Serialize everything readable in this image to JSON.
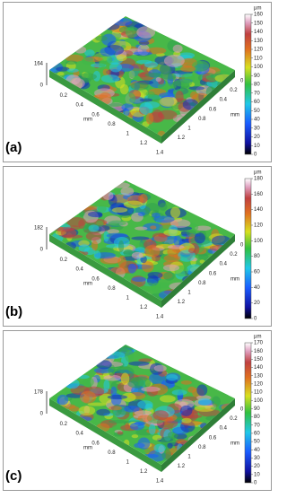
{
  "panels": [
    {
      "label": "(a)",
      "unit": "µm",
      "colorbar_ticks": [
        "0",
        "10",
        "20",
        "30",
        "40",
        "50",
        "60",
        "70",
        "80",
        "90",
        "100",
        "110",
        "120",
        "130",
        "140",
        "150",
        "160"
      ],
      "z_top": "164",
      "z_bottom": "0",
      "x_ticks": [
        "0.2",
        "0.4",
        "0.6",
        "0.8",
        "1",
        "1.2",
        "1.4"
      ],
      "x_unit": "mm",
      "y_ticks": [
        "0",
        "0.2",
        "0.4",
        "0.6",
        "0.8",
        "1",
        "1.2"
      ],
      "y_unit": "mm"
    },
    {
      "label": "(b)",
      "unit": "µm",
      "colorbar_ticks": [
        "0",
        "20",
        "40",
        "60",
        "80",
        "100",
        "120",
        "140",
        "160",
        "180"
      ],
      "z_top": "182",
      "z_bottom": "0",
      "x_ticks": [
        "0.2",
        "0.4",
        "0.6",
        "0.8",
        "1",
        "1.2",
        "1.4"
      ],
      "x_unit": "mm",
      "y_ticks": [
        "0",
        "0.2",
        "0.4",
        "0.6",
        "0.8",
        "1",
        "1.2"
      ],
      "y_unit": "mm"
    },
    {
      "label": "(c)",
      "unit": "µm",
      "colorbar_ticks": [
        "0",
        "10",
        "20",
        "30",
        "40",
        "50",
        "60",
        "70",
        "80",
        "90",
        "100",
        "110",
        "120",
        "130",
        "140",
        "150",
        "160",
        "170"
      ],
      "z_top": "178",
      "z_bottom": "0",
      "x_ticks": [
        "0.2",
        "0.4",
        "0.6",
        "0.8",
        "1",
        "1.2",
        "1.4"
      ],
      "x_unit": "mm",
      "y_ticks": [
        "0",
        "0.2",
        "0.4",
        "0.6",
        "0.8",
        "1",
        "1.2"
      ],
      "y_unit": "mm"
    }
  ]
}
